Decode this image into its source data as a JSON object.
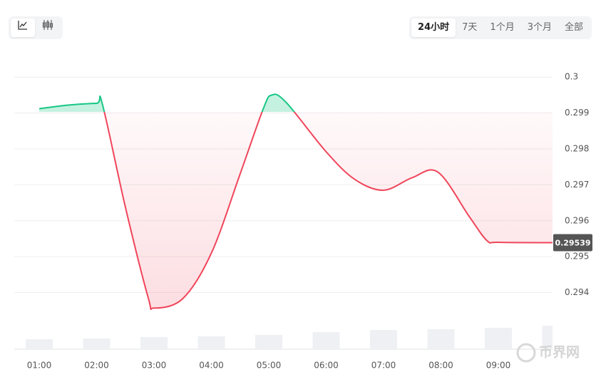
{
  "chart_data": {
    "type": "line",
    "tabs": [
      "24小时",
      "7天",
      "1个月",
      "3个月",
      "全部"
    ],
    "watermark": "币界网",
    "xlim": [
      0.565,
      9.944
    ],
    "xticks": [
      {
        "value": 1,
        "label": "01:00"
      },
      {
        "value": 2,
        "label": "02:00"
      },
      {
        "value": 3,
        "label": "03:00"
      },
      {
        "value": 4,
        "label": "04:00"
      },
      {
        "value": 5,
        "label": "05:00"
      },
      {
        "value": 6,
        "label": "06:00"
      },
      {
        "value": 7,
        "label": "07:00"
      },
      {
        "value": 8,
        "label": "08:00"
      },
      {
        "value": 9,
        "label": "09:00"
      }
    ],
    "ylim": [
      0.2928,
      0.3005
    ],
    "yticks": [
      0.3,
      0.299,
      0.298,
      0.297,
      0.296,
      0.295,
      0.294
    ],
    "baseline": 0.29903,
    "x": [
      1,
      1.5,
      2,
      2.1,
      2.5,
      2.9,
      3,
      3.5,
      4,
      4.5,
      4.9,
      5.05,
      5.3,
      6,
      6.5,
      7,
      7.5,
      7.95,
      8.5,
      8.8,
      9,
      9.944
    ],
    "series": [
      {
        "up_color": "#16c784",
        "down_color": "#f0455a",
        "values": [
          0.29912,
          0.29922,
          0.29927,
          0.29925,
          0.29639,
          0.29385,
          0.29357,
          0.29383,
          0.2951,
          0.2973,
          0.2991,
          0.2995,
          0.2993,
          0.29792,
          0.29715,
          0.29685,
          0.2972,
          0.29735,
          0.2961,
          0.29545,
          0.2954,
          0.29539
        ]
      }
    ],
    "volume": {
      "x": [
        1,
        2,
        3,
        4,
        5,
        6,
        7,
        8,
        9,
        10
      ],
      "values": [
        14,
        15,
        17,
        18,
        20,
        24,
        27,
        28,
        30,
        33
      ],
      "ylim": [
        0,
        40
      ],
      "color": "#eef0f3"
    }
  }
}
